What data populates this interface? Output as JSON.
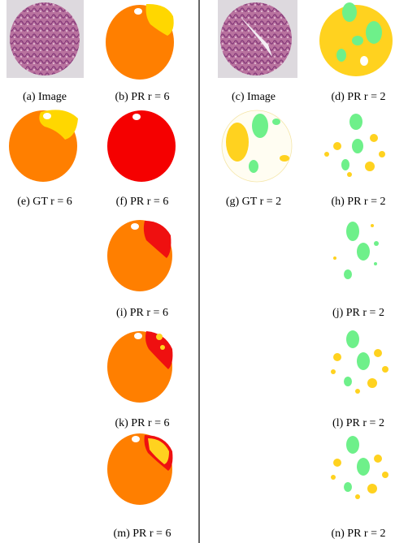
{
  "panels": [
    {
      "caption": "(a) Image"
    },
    {
      "caption": "(b) PR r = 6"
    },
    {
      "caption": "(c) Image"
    },
    {
      "caption": "(d) PR r = 2"
    },
    {
      "caption": "(e) GT r = 6"
    },
    {
      "caption": "(f) PR r = 6"
    },
    {
      "caption": "(g) GT r = 2"
    },
    {
      "caption": "(h) PR r = 2"
    },
    {
      "caption": "(i) PR r = 6"
    },
    {
      "caption": "(j) PR r = 2"
    },
    {
      "caption": "(k) PR r = 6"
    },
    {
      "caption": "(l) PR r = 2"
    },
    {
      "caption": "(m) PR r = 6"
    },
    {
      "caption": "(n) PR r = 2"
    }
  ]
}
